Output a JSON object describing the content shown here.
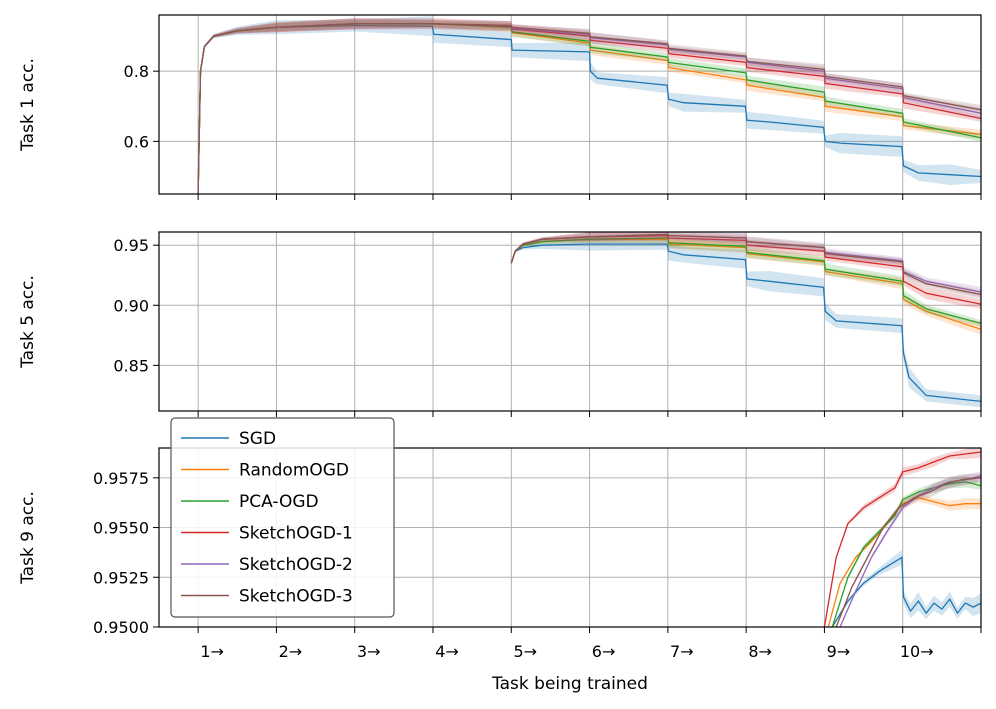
{
  "chart_data": {
    "type": "line",
    "xlabel": "Task being trained",
    "x_tick_labels": [
      "1→",
      "2→",
      "3→",
      "4→",
      "5→",
      "6→",
      "7→",
      "8→",
      "9→",
      "10→"
    ],
    "xlim": [
      0.5,
      11.0
    ],
    "series_names": [
      "SGD",
      "RandomOGD",
      "PCA-OGD",
      "SketchOGD-1",
      "SketchOGD-2",
      "SketchOGD-3"
    ],
    "colors": {
      "SGD": "#1f77b4",
      "RandomOGD": "#ff7f0e",
      "PCA-OGD": "#2ca02c",
      "SketchOGD-1": "#d62728",
      "SketchOGD-2": "#9467bd",
      "SketchOGD-3": "#8c564b"
    },
    "legend": {
      "location": "upper-left of bottom panel"
    },
    "panels": [
      {
        "ylabel": "Task 1 acc.",
        "ylim": [
          0.45,
          0.96
        ],
        "yticks": [
          0.6,
          0.8
        ],
        "ytick_labels": [
          "0.6",
          "0.8"
        ],
        "series": {
          "SGD": {
            "x": [
              1.0,
              1.03,
              1.08,
              1.2,
              1.5,
              2,
              3,
              3.99,
              4.01,
              5,
              5.01,
              6,
              6.01,
              6.1,
              6.99,
              7.01,
              7.2,
              7.99,
              8.01,
              8.3,
              8.99,
              9.01,
              9.2,
              9.99,
              10.01,
              10.2,
              10.6,
              11.0
            ],
            "y": [
              0.45,
              0.8,
              0.87,
              0.9,
              0.915,
              0.925,
              0.93,
              0.928,
              0.905,
              0.89,
              0.86,
              0.855,
              0.8,
              0.78,
              0.76,
              0.72,
              0.71,
              0.7,
              0.66,
              0.655,
              0.64,
              0.6,
              0.595,
              0.585,
              0.53,
              0.51,
              0.505,
              0.5
            ]
          },
          "RandomOGD": {
            "x": [
              1.0,
              1.03,
              1.08,
              1.2,
              1.5,
              2,
              3,
              4,
              5,
              5.01,
              6,
              6.01,
              7,
              7.01,
              8,
              8.01,
              9,
              9.01,
              10,
              10.01,
              11.0
            ],
            "y": [
              0.45,
              0.8,
              0.87,
              0.9,
              0.915,
              0.925,
              0.935,
              0.935,
              0.925,
              0.91,
              0.88,
              0.86,
              0.83,
              0.81,
              0.775,
              0.76,
              0.725,
              0.7,
              0.67,
              0.645,
              0.62
            ]
          },
          "PCA-OGD": {
            "x": [
              1.0,
              1.03,
              1.08,
              1.2,
              1.5,
              2,
              3,
              4,
              5,
              5.01,
              6,
              6.01,
              7,
              7.01,
              8,
              8.01,
              9,
              9.01,
              10,
              10.01,
              11.0
            ],
            "y": [
              0.45,
              0.8,
              0.87,
              0.9,
              0.915,
              0.925,
              0.935,
              0.935,
              0.925,
              0.912,
              0.885,
              0.868,
              0.84,
              0.825,
              0.795,
              0.775,
              0.74,
              0.715,
              0.68,
              0.655,
              0.61
            ]
          },
          "SketchOGD-1": {
            "x": [
              1.0,
              1.03,
              1.08,
              1.2,
              1.5,
              2,
              3,
              4,
              5,
              5.01,
              6,
              6.01,
              7,
              7.01,
              8,
              8.01,
              9,
              9.01,
              10,
              10.01,
              11.0
            ],
            "y": [
              0.45,
              0.8,
              0.87,
              0.9,
              0.915,
              0.925,
              0.935,
              0.935,
              0.928,
              0.92,
              0.9,
              0.888,
              0.865,
              0.85,
              0.825,
              0.81,
              0.785,
              0.765,
              0.735,
              0.71,
              0.665
            ]
          },
          "SketchOGD-2": {
            "x": [
              1.0,
              1.03,
              1.08,
              1.2,
              1.5,
              2,
              3,
              4,
              5,
              5.01,
              6,
              6.01,
              7,
              7.01,
              8,
              8.01,
              9,
              9.01,
              10,
              10.01,
              11.0
            ],
            "y": [
              0.45,
              0.8,
              0.87,
              0.9,
              0.915,
              0.925,
              0.935,
              0.935,
              0.93,
              0.922,
              0.905,
              0.895,
              0.875,
              0.862,
              0.84,
              0.825,
              0.8,
              0.78,
              0.75,
              0.725,
              0.68
            ]
          },
          "SketchOGD-3": {
            "x": [
              1.0,
              1.03,
              1.08,
              1.2,
              1.5,
              2,
              3,
              4,
              5,
              5.01,
              6,
              6.01,
              7,
              7.01,
              8,
              8.01,
              9,
              9.01,
              10,
              10.01,
              11.0
            ],
            "y": [
              0.45,
              0.8,
              0.87,
              0.9,
              0.915,
              0.925,
              0.935,
              0.935,
              0.93,
              0.925,
              0.908,
              0.898,
              0.878,
              0.865,
              0.843,
              0.828,
              0.805,
              0.785,
              0.755,
              0.73,
              0.69
            ]
          }
        }
      },
      {
        "ylabel": "Task 5 acc.",
        "ylim": [
          0.812,
          0.961
        ],
        "yticks": [
          0.85,
          0.9,
          0.95
        ],
        "ytick_labels": [
          "0.85",
          "0.90",
          "0.95"
        ],
        "series": {
          "SGD": {
            "x": [
              5.0,
              5.05,
              5.15,
              5.4,
              6,
              6.99,
              7.01,
              7.2,
              7.99,
              8.01,
              8.3,
              8.99,
              9.01,
              9.15,
              9.99,
              10.01,
              10.08,
              10.3,
              11.0
            ],
            "y": [
              0.935,
              0.945,
              0.948,
              0.95,
              0.951,
              0.951,
              0.945,
              0.942,
              0.938,
              0.922,
              0.92,
              0.915,
              0.895,
              0.887,
              0.883,
              0.86,
              0.84,
              0.825,
              0.82
            ]
          },
          "RandomOGD": {
            "x": [
              5.0,
              5.05,
              5.15,
              5.4,
              6,
              7,
              7.01,
              8,
              8.01,
              9,
              9.01,
              10,
              10.01,
              10.3,
              11.0
            ],
            "y": [
              0.935,
              0.945,
              0.95,
              0.953,
              0.955,
              0.955,
              0.951,
              0.948,
              0.943,
              0.936,
              0.928,
              0.918,
              0.905,
              0.895,
              0.88
            ]
          },
          "PCA-OGD": {
            "x": [
              5.0,
              5.05,
              5.15,
              5.4,
              6,
              7,
              7.01,
              8,
              8.01,
              9,
              9.01,
              10,
              10.01,
              10.3,
              11.0
            ],
            "y": [
              0.935,
              0.945,
              0.95,
              0.953,
              0.955,
              0.956,
              0.952,
              0.949,
              0.944,
              0.937,
              0.93,
              0.92,
              0.908,
              0.897,
              0.885
            ]
          },
          "SketchOGD-1": {
            "x": [
              5.0,
              5.05,
              5.15,
              5.4,
              6,
              7,
              7.01,
              8,
              8.01,
              9,
              9.01,
              10,
              10.01,
              10.3,
              11.0
            ],
            "y": [
              0.935,
              0.945,
              0.951,
              0.955,
              0.957,
              0.958,
              0.956,
              0.954,
              0.95,
              0.945,
              0.94,
              0.932,
              0.92,
              0.91,
              0.901
            ]
          },
          "SketchOGD-2": {
            "x": [
              5.0,
              5.05,
              5.15,
              5.4,
              6,
              7,
              7.01,
              8,
              8.01,
              9,
              9.01,
              10,
              10.01,
              10.3,
              11.0
            ],
            "y": [
              0.935,
              0.945,
              0.951,
              0.955,
              0.957,
              0.959,
              0.958,
              0.956,
              0.953,
              0.948,
              0.944,
              0.937,
              0.928,
              0.92,
              0.911
            ]
          },
          "SketchOGD-3": {
            "x": [
              5.0,
              5.05,
              5.15,
              5.4,
              6,
              7,
              7.01,
              8,
              8.01,
              9,
              9.01,
              10,
              10.01,
              10.3,
              11.0
            ],
            "y": [
              0.935,
              0.945,
              0.951,
              0.955,
              0.957,
              0.959,
              0.958,
              0.956,
              0.953,
              0.948,
              0.943,
              0.936,
              0.927,
              0.918,
              0.909
            ]
          }
        }
      },
      {
        "ylabel": "Task 9 acc.",
        "ylim": [
          0.95,
          0.959
        ],
        "yticks": [
          0.95,
          0.9525,
          0.955,
          0.9575
        ],
        "ytick_labels": [
          "0.9500",
          "0.9525",
          "0.9550",
          "0.9575"
        ],
        "series": {
          "SGD": {
            "x": [
              9.1,
              9.3,
              9.5,
              9.7,
              9.99,
              10.01,
              10.1,
              10.2,
              10.3,
              10.4,
              10.5,
              10.6,
              10.7,
              10.8,
              10.9,
              11.0
            ],
            "y": [
              0.95,
              0.9513,
              0.9522,
              0.9528,
              0.9535,
              0.9515,
              0.9508,
              0.9513,
              0.9507,
              0.9512,
              0.9509,
              0.9514,
              0.9507,
              0.9512,
              0.951,
              0.9512
            ]
          },
          "RandomOGD": {
            "x": [
              9.05,
              9.2,
              9.4,
              9.6,
              9.8,
              10,
              10.2,
              10.4,
              10.6,
              10.8,
              11.0
            ],
            "y": [
              0.95,
              0.9522,
              0.9535,
              0.9543,
              0.9552,
              0.9562,
              0.9565,
              0.9563,
              0.9561,
              0.9562,
              0.9562
            ]
          },
          "PCA-OGD": {
            "x": [
              9.1,
              9.3,
              9.5,
              9.7,
              9.9,
              10,
              10.2,
              10.4,
              10.6,
              10.8,
              11.0
            ],
            "y": [
              0.95,
              0.9525,
              0.954,
              0.9548,
              0.9556,
              0.9564,
              0.9568,
              0.957,
              0.9572,
              0.9573,
              0.9571
            ]
          },
          "SketchOGD-1": {
            "x": [
              9.0,
              9.15,
              9.3,
              9.5,
              9.7,
              9.9,
              10,
              10.2,
              10.4,
              10.6,
              10.8,
              11.0
            ],
            "y": [
              0.95,
              0.9535,
              0.9552,
              0.956,
              0.9565,
              0.957,
              0.9578,
              0.958,
              0.9583,
              0.9586,
              0.9587,
              0.9588
            ]
          },
          "SketchOGD-2": {
            "x": [
              9.2,
              9.4,
              9.6,
              9.8,
              10,
              10.2,
              10.4,
              10.6,
              10.8,
              11.0
            ],
            "y": [
              0.95,
              0.9518,
              0.9535,
              0.9548,
              0.956,
              0.9566,
              0.957,
              0.9573,
              0.9574,
              0.9576
            ]
          },
          "SketchOGD-3": {
            "x": [
              9.15,
              9.35,
              9.55,
              9.75,
              9.95,
              10.15,
              10.35,
              10.55,
              10.75,
              11.0
            ],
            "y": [
              0.95,
              0.952,
              0.9535,
              0.955,
              0.956,
              0.9565,
              0.9568,
              0.9572,
              0.9574,
              0.9575
            ]
          }
        }
      }
    ]
  }
}
